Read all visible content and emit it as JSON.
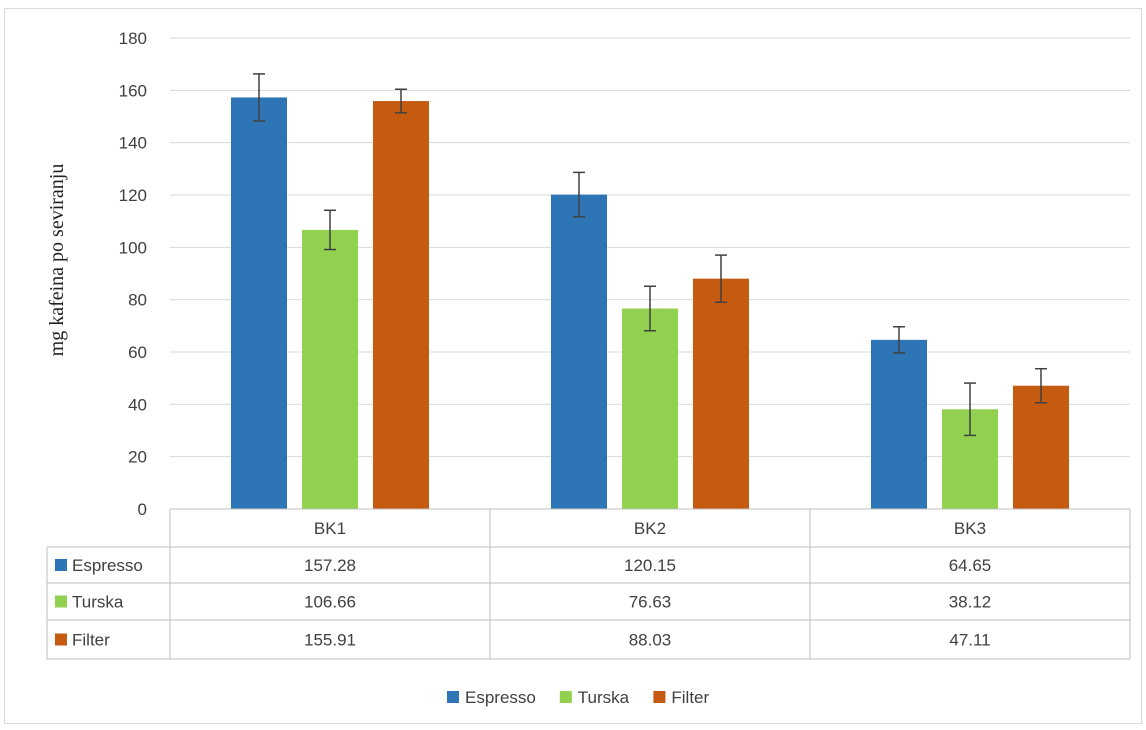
{
  "chart_data": {
    "type": "bar",
    "title": "",
    "ylabel": "mg kafeina po seviranju",
    "xlabel": "",
    "ylim": [
      0,
      180
    ],
    "ytick_step": 20,
    "yticks": [
      "0",
      "20",
      "40",
      "60",
      "80",
      "100",
      "120",
      "140",
      "160",
      "180"
    ],
    "categories": [
      "BK1",
      "BK2",
      "BK3"
    ],
    "series": [
      {
        "name": "Espresso",
        "color": "#2e75b6",
        "values": [
          157.28,
          120.15,
          64.65
        ],
        "value_labels": [
          "157.28",
          "120.15",
          "64.65"
        ],
        "error": [
          9,
          8.5,
          5
        ]
      },
      {
        "name": "Turska",
        "color": "#92d050",
        "values": [
          106.66,
          76.63,
          38.12
        ],
        "value_labels": [
          "106.66",
          "76.63",
          "38.12"
        ],
        "error": [
          7.5,
          8.5,
          10
        ]
      },
      {
        "name": "Filter",
        "color": "#c55a11",
        "values": [
          155.91,
          88.03,
          47.11
        ],
        "value_labels": [
          "155.91",
          "88.03",
          "47.11"
        ],
        "error": [
          4.5,
          9,
          6.5
        ]
      }
    ],
    "grid": true,
    "legend": "bottom-center",
    "data_table": true,
    "error_bars": true
  }
}
